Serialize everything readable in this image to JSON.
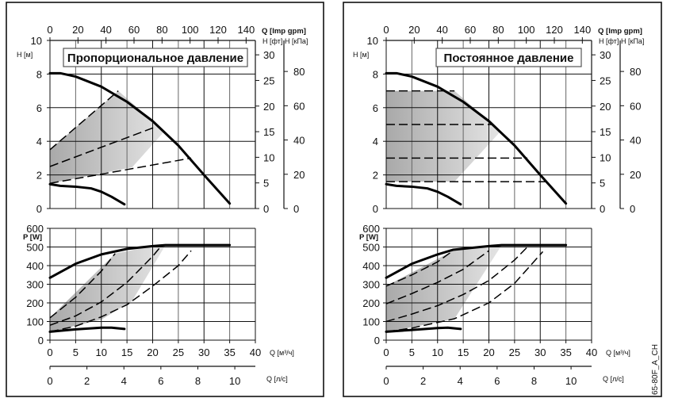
{
  "figure_code": "65-80F_A_CH",
  "chart_data": [
    {
      "type": "line",
      "panel": "left",
      "title": "Пропорциональное давление",
      "head_chart": {
        "xlabel_top": "Q [Imp gpm]",
        "x_top_ticks": [
          0,
          20,
          40,
          60,
          80,
          100,
          120,
          140
        ],
        "ylabel": "H [м]",
        "y_ticks": [
          0,
          2,
          4,
          6,
          8,
          10
        ],
        "ylim": [
          0,
          10
        ],
        "xlim": [
          0,
          40
        ],
        "ylabel_ft": "H [фт]",
        "y_ft_ticks": [
          0,
          5,
          10,
          15,
          20,
          25,
          30
        ],
        "ylabel_kpa": "H [кПа]",
        "y_kpa_ticks": [
          0,
          20,
          40,
          60,
          80
        ],
        "grid": true,
        "series": [
          {
            "name": "max curve",
            "style": "solid",
            "x": [
              0,
              2,
              5,
              10,
              15,
              20,
              25,
              30,
              35
            ],
            "y": [
              8.05,
              8.05,
              7.85,
              7.25,
              6.35,
              5.2,
              3.75,
              2.0,
              0.3
            ]
          },
          {
            "name": "min curve",
            "style": "solid",
            "x": [
              0,
              2,
              5,
              8,
              10,
              12,
              14.5
            ],
            "y": [
              1.45,
              1.35,
              1.3,
              1.2,
              1.0,
              0.7,
              0.25
            ]
          },
          {
            "name": "PP high",
            "style": "dashed",
            "x": [
              0,
              13.3
            ],
            "y": [
              3.5,
              7.0
            ]
          },
          {
            "name": "PP mid",
            "style": "dashed",
            "x": [
              0,
              20.5
            ],
            "y": [
              2.5,
              4.85
            ]
          },
          {
            "name": "PP low",
            "style": "dashed",
            "x": [
              0,
              27.5
            ],
            "y": [
              1.5,
              3.0
            ]
          }
        ],
        "shaded_region": {
          "x": [
            0,
            13.3,
            18,
            22.3,
            16,
            0
          ],
          "y": [
            3.5,
            7.0,
            5.75,
            4.6,
            2.45,
            1.5
          ]
        }
      },
      "power_chart": {
        "ylabel": "P [W]",
        "y_ticks": [
          0,
          100,
          200,
          300,
          400,
          500,
          600
        ],
        "ylim": [
          0,
          600
        ],
        "xlabel": "Q [м³/ч]",
        "x_ticks": [
          0,
          5,
          10,
          15,
          20,
          25,
          30,
          35,
          40
        ],
        "xlim": [
          0,
          40
        ],
        "xlabel2": "Q [л/с]",
        "x2_ticks": [
          0,
          2,
          4,
          6,
          8,
          10
        ],
        "grid": true,
        "series": [
          {
            "name": "max power",
            "style": "solid",
            "x": [
              0,
              5,
              10,
              15,
              20,
              22.5,
              35
            ],
            "y": [
              335,
              410,
              460,
              490,
              505,
              510,
              510
            ]
          },
          {
            "name": "min power",
            "style": "solid",
            "x": [
              0,
              5,
              10,
              12,
              14.5
            ],
            "y": [
              45,
              58,
              67,
              67,
              60
            ]
          },
          {
            "name": "PP high",
            "style": "dashed",
            "x": [
              0,
              5,
              10,
              12.7
            ],
            "y": [
              120,
              230,
              370,
              465
            ]
          },
          {
            "name": "PP mid",
            "style": "dashed",
            "x": [
              0,
              5,
              10,
              15,
              20,
              21.5
            ],
            "y": [
              80,
              130,
              205,
              310,
              450,
              500
            ]
          },
          {
            "name": "PP low",
            "style": "dashed",
            "x": [
              0,
              5,
              10,
              15,
              20,
              25,
              27.5
            ],
            "y": [
              45,
              75,
              125,
              190,
              290,
              400,
              480
            ]
          }
        ],
        "shaded_region": {
          "x": [
            0,
            12.7,
            20,
            22.5,
            16,
            10,
            0
          ],
          "y": [
            120,
            465,
            505,
            510,
            210,
            110,
            45
          ]
        }
      }
    },
    {
      "type": "line",
      "panel": "right",
      "title": "Постоянное давление",
      "head_chart": {
        "xlabel_top": "Q [Imp gpm]",
        "x_top_ticks": [
          0,
          20,
          40,
          60,
          80,
          100,
          120,
          140
        ],
        "ylabel": "H [м]",
        "y_ticks": [
          0,
          2,
          4,
          6,
          8,
          10
        ],
        "ylim": [
          0,
          10
        ],
        "xlim": [
          0,
          40
        ],
        "ylabel_ft": "H [фт]",
        "y_ft_ticks": [
          0,
          5,
          10,
          15,
          20,
          25,
          30
        ],
        "ylabel_kpa": "H [кПа]",
        "y_kpa_ticks": [
          0,
          20,
          40,
          60,
          80
        ],
        "grid": true,
        "series": [
          {
            "name": "max curve",
            "style": "solid",
            "x": [
              0,
              2,
              5,
              10,
              15,
              20,
              25,
              30,
              35
            ],
            "y": [
              8.05,
              8.05,
              7.85,
              7.25,
              6.35,
              5.2,
              3.75,
              2.0,
              0.3
            ]
          },
          {
            "name": "min curve",
            "style": "solid",
            "x": [
              0,
              2,
              5,
              8,
              10,
              12,
              14.5
            ],
            "y": [
              1.45,
              1.35,
              1.3,
              1.2,
              1.0,
              0.7,
              0.25
            ]
          },
          {
            "name": "CP 7 m",
            "style": "dashed",
            "x": [
              0,
              13.3
            ],
            "y": [
              7.0,
              7.0
            ]
          },
          {
            "name": "CP 5 m",
            "style": "dashed",
            "x": [
              0,
              20.5
            ],
            "y": [
              5.0,
              5.0
            ]
          },
          {
            "name": "CP 3 m",
            "style": "dashed",
            "x": [
              0,
              27.5
            ],
            "y": [
              3.0,
              3.0
            ]
          },
          {
            "name": "CP 1.6 m",
            "style": "dashed",
            "x": [
              0,
              31.5
            ],
            "y": [
              1.6,
              1.6
            ]
          }
        ],
        "shaded_region": {
          "x": [
            0,
            13.3,
            18,
            22.3,
            13.3,
            0
          ],
          "y": [
            7.0,
            7.0,
            5.75,
            4.6,
            1.6,
            1.6
          ]
        }
      },
      "power_chart": {
        "ylabel": "P [W]",
        "y_ticks": [
          0,
          100,
          200,
          300,
          400,
          500,
          600
        ],
        "ylim": [
          0,
          600
        ],
        "xlabel": "Q [м³/ч]",
        "x_ticks": [
          0,
          5,
          10,
          15,
          20,
          25,
          30,
          35,
          40
        ],
        "xlim": [
          0,
          40
        ],
        "xlabel2": "Q [л/с]",
        "x2_ticks": [
          0,
          2,
          4,
          6,
          8,
          10
        ],
        "grid": true,
        "series": [
          {
            "name": "max power",
            "style": "solid",
            "x": [
              0,
              5,
              10,
              13,
              20,
              22.5,
              35
            ],
            "y": [
              335,
              410,
              460,
              485,
              505,
              510,
              510
            ]
          },
          {
            "name": "min power",
            "style": "solid",
            "x": [
              0,
              5,
              10,
              12,
              14.5
            ],
            "y": [
              45,
              55,
              65,
              67,
              60
            ]
          },
          {
            "name": "CP 7 m",
            "style": "dashed",
            "x": [
              0,
              5,
              10,
              13
            ],
            "y": [
              290,
              350,
              420,
              480
            ]
          },
          {
            "name": "CP 5 m",
            "style": "dashed",
            "x": [
              0,
              5,
              10,
              15,
              20
            ],
            "y": [
              195,
              250,
              310,
              380,
              480
            ]
          },
          {
            "name": "CP 3 m",
            "style": "dashed",
            "x": [
              0,
              5,
              10,
              15,
              20,
              25,
              27.5
            ],
            "y": [
              100,
              140,
              185,
              245,
              320,
              430,
              500
            ]
          },
          {
            "name": "CP 1.6 m",
            "style": "dashed",
            "x": [
              0,
              5,
              10,
              13.3,
              20,
              25,
              30.5
            ],
            "y": [
              45,
              65,
              95,
              115,
              200,
              305,
              475
            ]
          }
        ],
        "shaded_region": {
          "x": [
            0,
            13,
            20,
            22.5,
            13.3,
            10,
            0
          ],
          "y": [
            290,
            480,
            505,
            510,
            115,
            95,
            45
          ]
        }
      }
    }
  ]
}
